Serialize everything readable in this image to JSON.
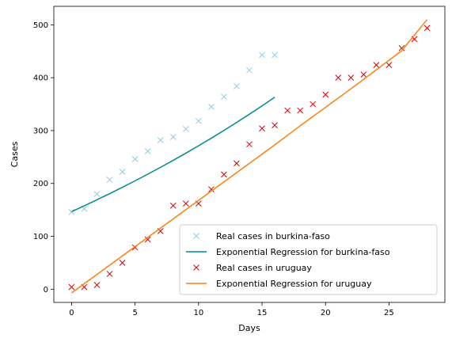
{
  "chart_data": {
    "type": "line",
    "title": "",
    "xlabel": "Days",
    "ylabel": "Cases",
    "xlim": [
      -1.4,
      29.4
    ],
    "ylim": [
      -25,
      535
    ],
    "xticks": [
      0,
      5,
      10,
      15,
      20,
      25
    ],
    "yticks": [
      0,
      100,
      200,
      300,
      400,
      500
    ],
    "grid": false,
    "legend_position": "lower-right",
    "series": [
      {
        "name": "Real cases in burkina-faso",
        "kind": "scatter",
        "marker": "x",
        "color": "#87ceeb",
        "x": [
          0,
          1,
          2,
          3,
          4,
          5,
          6,
          7,
          8,
          9,
          10,
          11,
          12,
          13,
          14,
          15,
          16
        ],
        "y": [
          146,
          152,
          180,
          207,
          222,
          246,
          261,
          282,
          288,
          303,
          318,
          345,
          364,
          384,
          414,
          443,
          443
        ]
      },
      {
        "name": "Exponential Regression for burkina-faso",
        "kind": "line",
        "color": "#008b8b",
        "x": [
          0,
          1,
          2,
          3,
          4,
          5,
          6,
          7,
          8,
          9,
          10,
          11,
          12,
          13,
          14,
          15,
          16
        ],
        "y": [
          146.7,
          157.8,
          169.2,
          180.8,
          192.8,
          205.0,
          217.6,
          230.5,
          243.7,
          257.3,
          271.3,
          285.6,
          300.3,
          315.4,
          330.9,
          346.8,
          363.1
        ]
      },
      {
        "name": "Real cases in uruguay",
        "kind": "scatter",
        "marker": "x",
        "color": "#e00000",
        "x": [
          0,
          1,
          2,
          3,
          4,
          5,
          6,
          7,
          8,
          9,
          10,
          11,
          12,
          13,
          14,
          15,
          16,
          17,
          18,
          19,
          20,
          21,
          22,
          23,
          24,
          25,
          26,
          27,
          28
        ],
        "y": [
          4,
          4,
          8,
          29,
          50,
          79,
          94,
          110,
          158,
          162,
          162,
          189,
          217,
          238,
          274,
          304,
          310,
          338,
          338,
          350,
          368,
          400,
          400,
          406,
          424,
          424,
          456,
          473,
          494
        ]
      },
      {
        "name": "Exponential Regression for uruguay",
        "kind": "line",
        "color": "#ff7f0e",
        "x": [
          0,
          2,
          4,
          6,
          8,
          10,
          12,
          14,
          16,
          18,
          20,
          22,
          24,
          26,
          28
        ],
        "y": [
          -7,
          28,
          63,
          98,
          133,
          168,
          203,
          238,
          273,
          309,
          344,
          379,
          415,
          451,
          510
        ]
      }
    ]
  }
}
